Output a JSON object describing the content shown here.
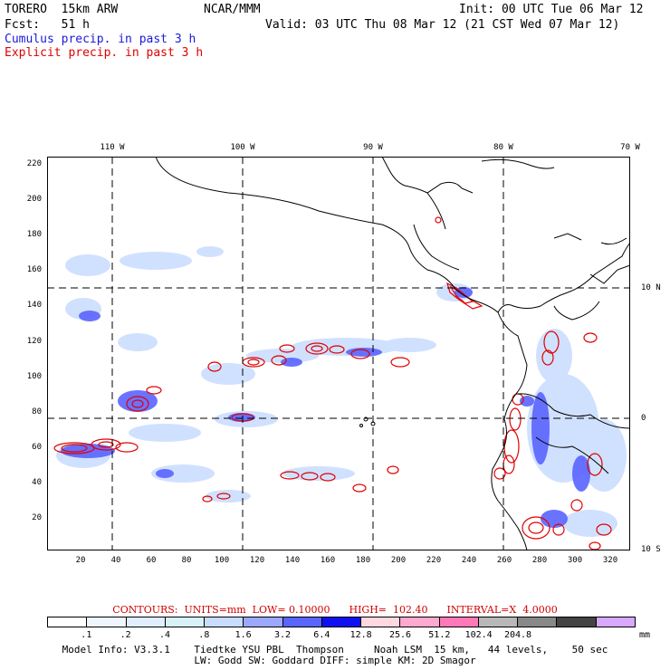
{
  "header": {
    "model": "TORERO  15km ARW",
    "org": "NCAR/MMM",
    "init": "Init: 00 UTC Tue 06 Mar 12",
    "fcst": "Fcst:   51 h",
    "valid": "Valid: 03 UTC Thu 08 Mar 12 (21 CST Wed 07 Mar 12)",
    "field_blue": "Cumulus precip. in past 3 h",
    "field_red": "Explicit precip. in past 3 h"
  },
  "colors": {
    "blue_field": "#1a1adb",
    "red_field": "#e00000",
    "axes": "#000000"
  },
  "axes": {
    "top_labels": [
      "110 W",
      "100 W",
      "90 W",
      "80 W",
      "70 W"
    ],
    "right_labels": [
      "10 N",
      "0",
      "10 S"
    ],
    "left_ticks": [
      "220",
      "200",
      "180",
      "160",
      "140",
      "120",
      "100",
      "80",
      "60",
      "40",
      "20"
    ],
    "bottom_ticks": [
      "20",
      "40",
      "60",
      "80",
      "100",
      "120",
      "140",
      "160",
      "180",
      "200",
      "220",
      "240",
      "260",
      "280",
      "300",
      "320"
    ]
  },
  "contours": {
    "text": "CONTOURS:  UNITS=mm  LOW= 0.10000      HIGH=  102.40      INTERVAL=X  4.0000"
  },
  "legend": {
    "colors": [
      "#ffffff",
      "#f0f6ff",
      "#e0eeff",
      "#d8f0f8",
      "#c8dcff",
      "#9ca8ff",
      "#5a64ff",
      "#1010f0",
      "#ffd8e0",
      "#ffa8d0",
      "#ff78b8",
      "#b8b8b8",
      "#888888",
      "#444444",
      "#d8a8ff"
    ],
    "labels": [
      ".1",
      ".2",
      ".4",
      ".8",
      "1.6",
      "3.2",
      "6.4",
      "12.8",
      "25.6",
      "51.2",
      "102.4",
      "204.8"
    ],
    "units": "mm"
  },
  "footer": {
    "line1": "Model Info: V3.3.1    Tiedtke YSU PBL  Thompson     Noah LSM  15 km,   44 levels,    50 sec",
    "line2": "LW: Godd SW: Goddard DIFF: simple KM: 2D Smagor"
  }
}
